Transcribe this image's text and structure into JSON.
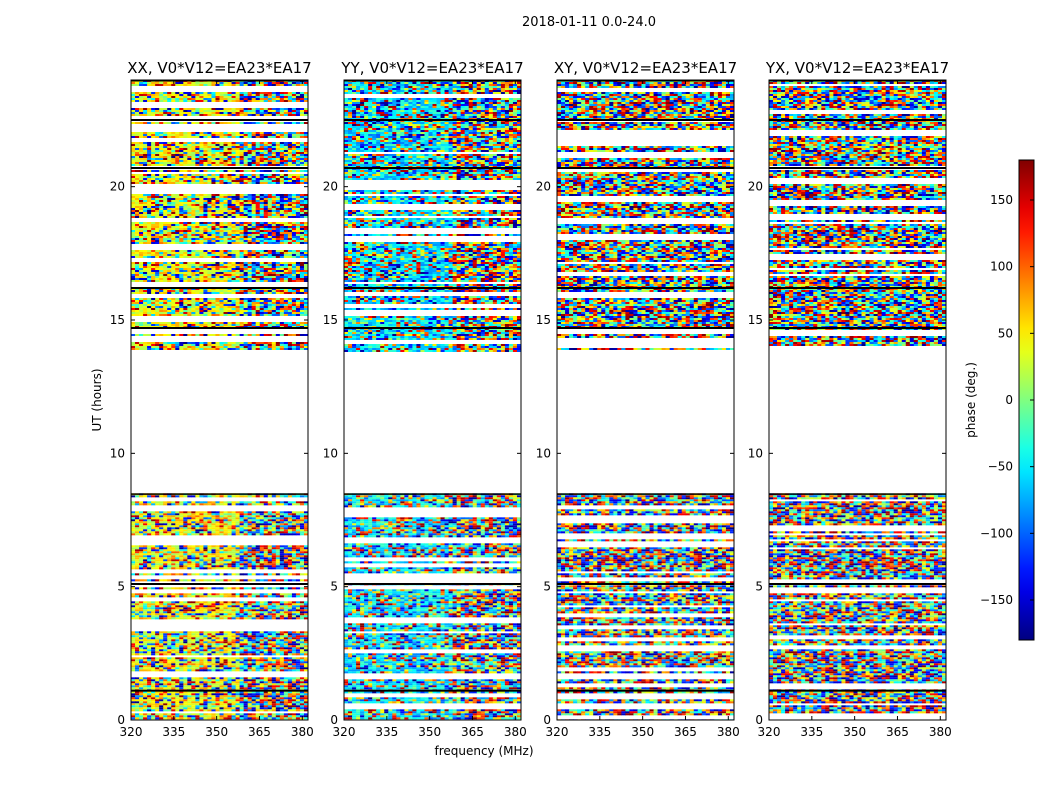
{
  "figure": {
    "suptitle": "2018-01-11 0.0-24.0"
  },
  "chart_data": {
    "type": "heatmap",
    "title": "2018-01-11 0.0-24.0",
    "xlabel": "frequency (MHz)",
    "ylabel": "UT (hours)",
    "xlim": [
      320,
      382
    ],
    "ylim": [
      0,
      24
    ],
    "x_ticks": [
      320,
      335,
      350,
      365,
      380
    ],
    "y_ticks": [
      0,
      5,
      10,
      15,
      20
    ],
    "panels": [
      {
        "title": "XX, V0*V12=EA23*EA17",
        "polarization": "XX",
        "baseline": "V0*V12=EA23*EA17"
      },
      {
        "title": "YY, V0*V12=EA23*EA17",
        "polarization": "YY",
        "baseline": "V0*V12=EA23*EA17"
      },
      {
        "title": "XY, V0*V12=EA23*EA17",
        "polarization": "XY",
        "baseline": "V0*V12=EA23*EA17"
      },
      {
        "title": "YX, V0*V12=EA23*EA17",
        "polarization": "YX",
        "baseline": "V0*V12=EA23*EA17"
      }
    ],
    "data_time_ranges_hours": [
      [
        0.0,
        8.5
      ],
      [
        13.8,
        24.0
      ]
    ],
    "colorbar": {
      "label": "phase (deg.)",
      "range": [
        -180,
        180
      ],
      "ticks": [
        -150,
        -100,
        -50,
        0,
        50,
        100,
        150
      ],
      "colormap": "jet"
    },
    "colors": {
      "jet": [
        "#00007f",
        "#0000ff",
        "#007fff",
        "#00ffff",
        "#7fff7f",
        "#ffff00",
        "#ff7f00",
        "#ff0000",
        "#7f0000"
      ]
    }
  }
}
